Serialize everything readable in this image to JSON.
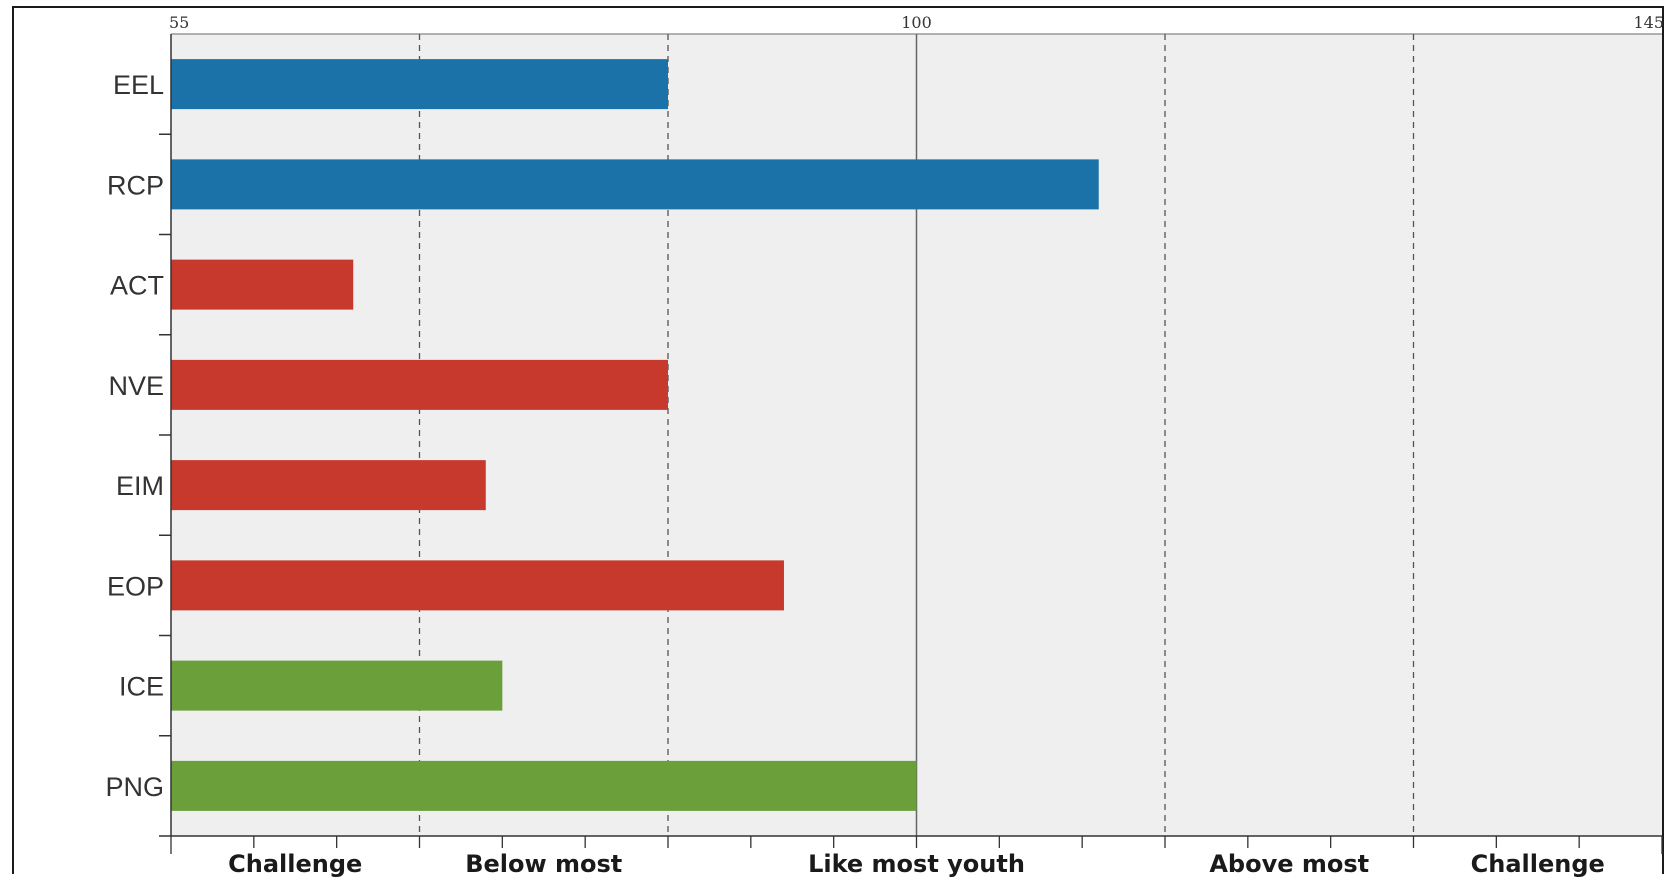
{
  "chart_data": {
    "type": "bar",
    "orientation": "horizontal",
    "categories": [
      "EEL",
      "RCP",
      "ACT",
      "NVE",
      "EIM",
      "EOP",
      "ICE",
      "PNG"
    ],
    "values": [
      85,
      111,
      66,
      85,
      74,
      92,
      75,
      100
    ],
    "colors": [
      "#1a72a8",
      "#1a72a8",
      "#c8392d",
      "#c8392d",
      "#c8392d",
      "#c8392d",
      "#6a9f3a",
      "#6a9f3a"
    ],
    "xlim": [
      55,
      145
    ],
    "top_ticks": [
      {
        "value": 55,
        "label": "55"
      },
      {
        "value": 100,
        "label": "100"
      },
      {
        "value": 145,
        "label": "145"
      }
    ],
    "dashed_gridlines": [
      70,
      85,
      115,
      130
    ],
    "solid_gridline": 100,
    "minor_ticks": [
      55,
      60,
      65,
      70,
      75,
      80,
      85,
      90,
      95,
      100,
      105,
      110,
      115,
      120,
      125,
      130,
      135,
      140,
      145
    ],
    "bands": [
      {
        "label": "Challenge",
        "from": 55,
        "to": 70
      },
      {
        "label": "Below most",
        "from": 70,
        "to": 85
      },
      {
        "label": "Like most youth",
        "from": 85,
        "to": 115
      },
      {
        "label": "Above most",
        "from": 115,
        "to": 130
      },
      {
        "label": "Challenge",
        "from": 130,
        "to": 145
      }
    ],
    "grid": true,
    "legend": "none",
    "title": "",
    "xlabel": "",
    "ylabel": ""
  },
  "style": {
    "plot_background": "#efefef",
    "grid_color": "#555555",
    "axis_color": "#333333"
  }
}
